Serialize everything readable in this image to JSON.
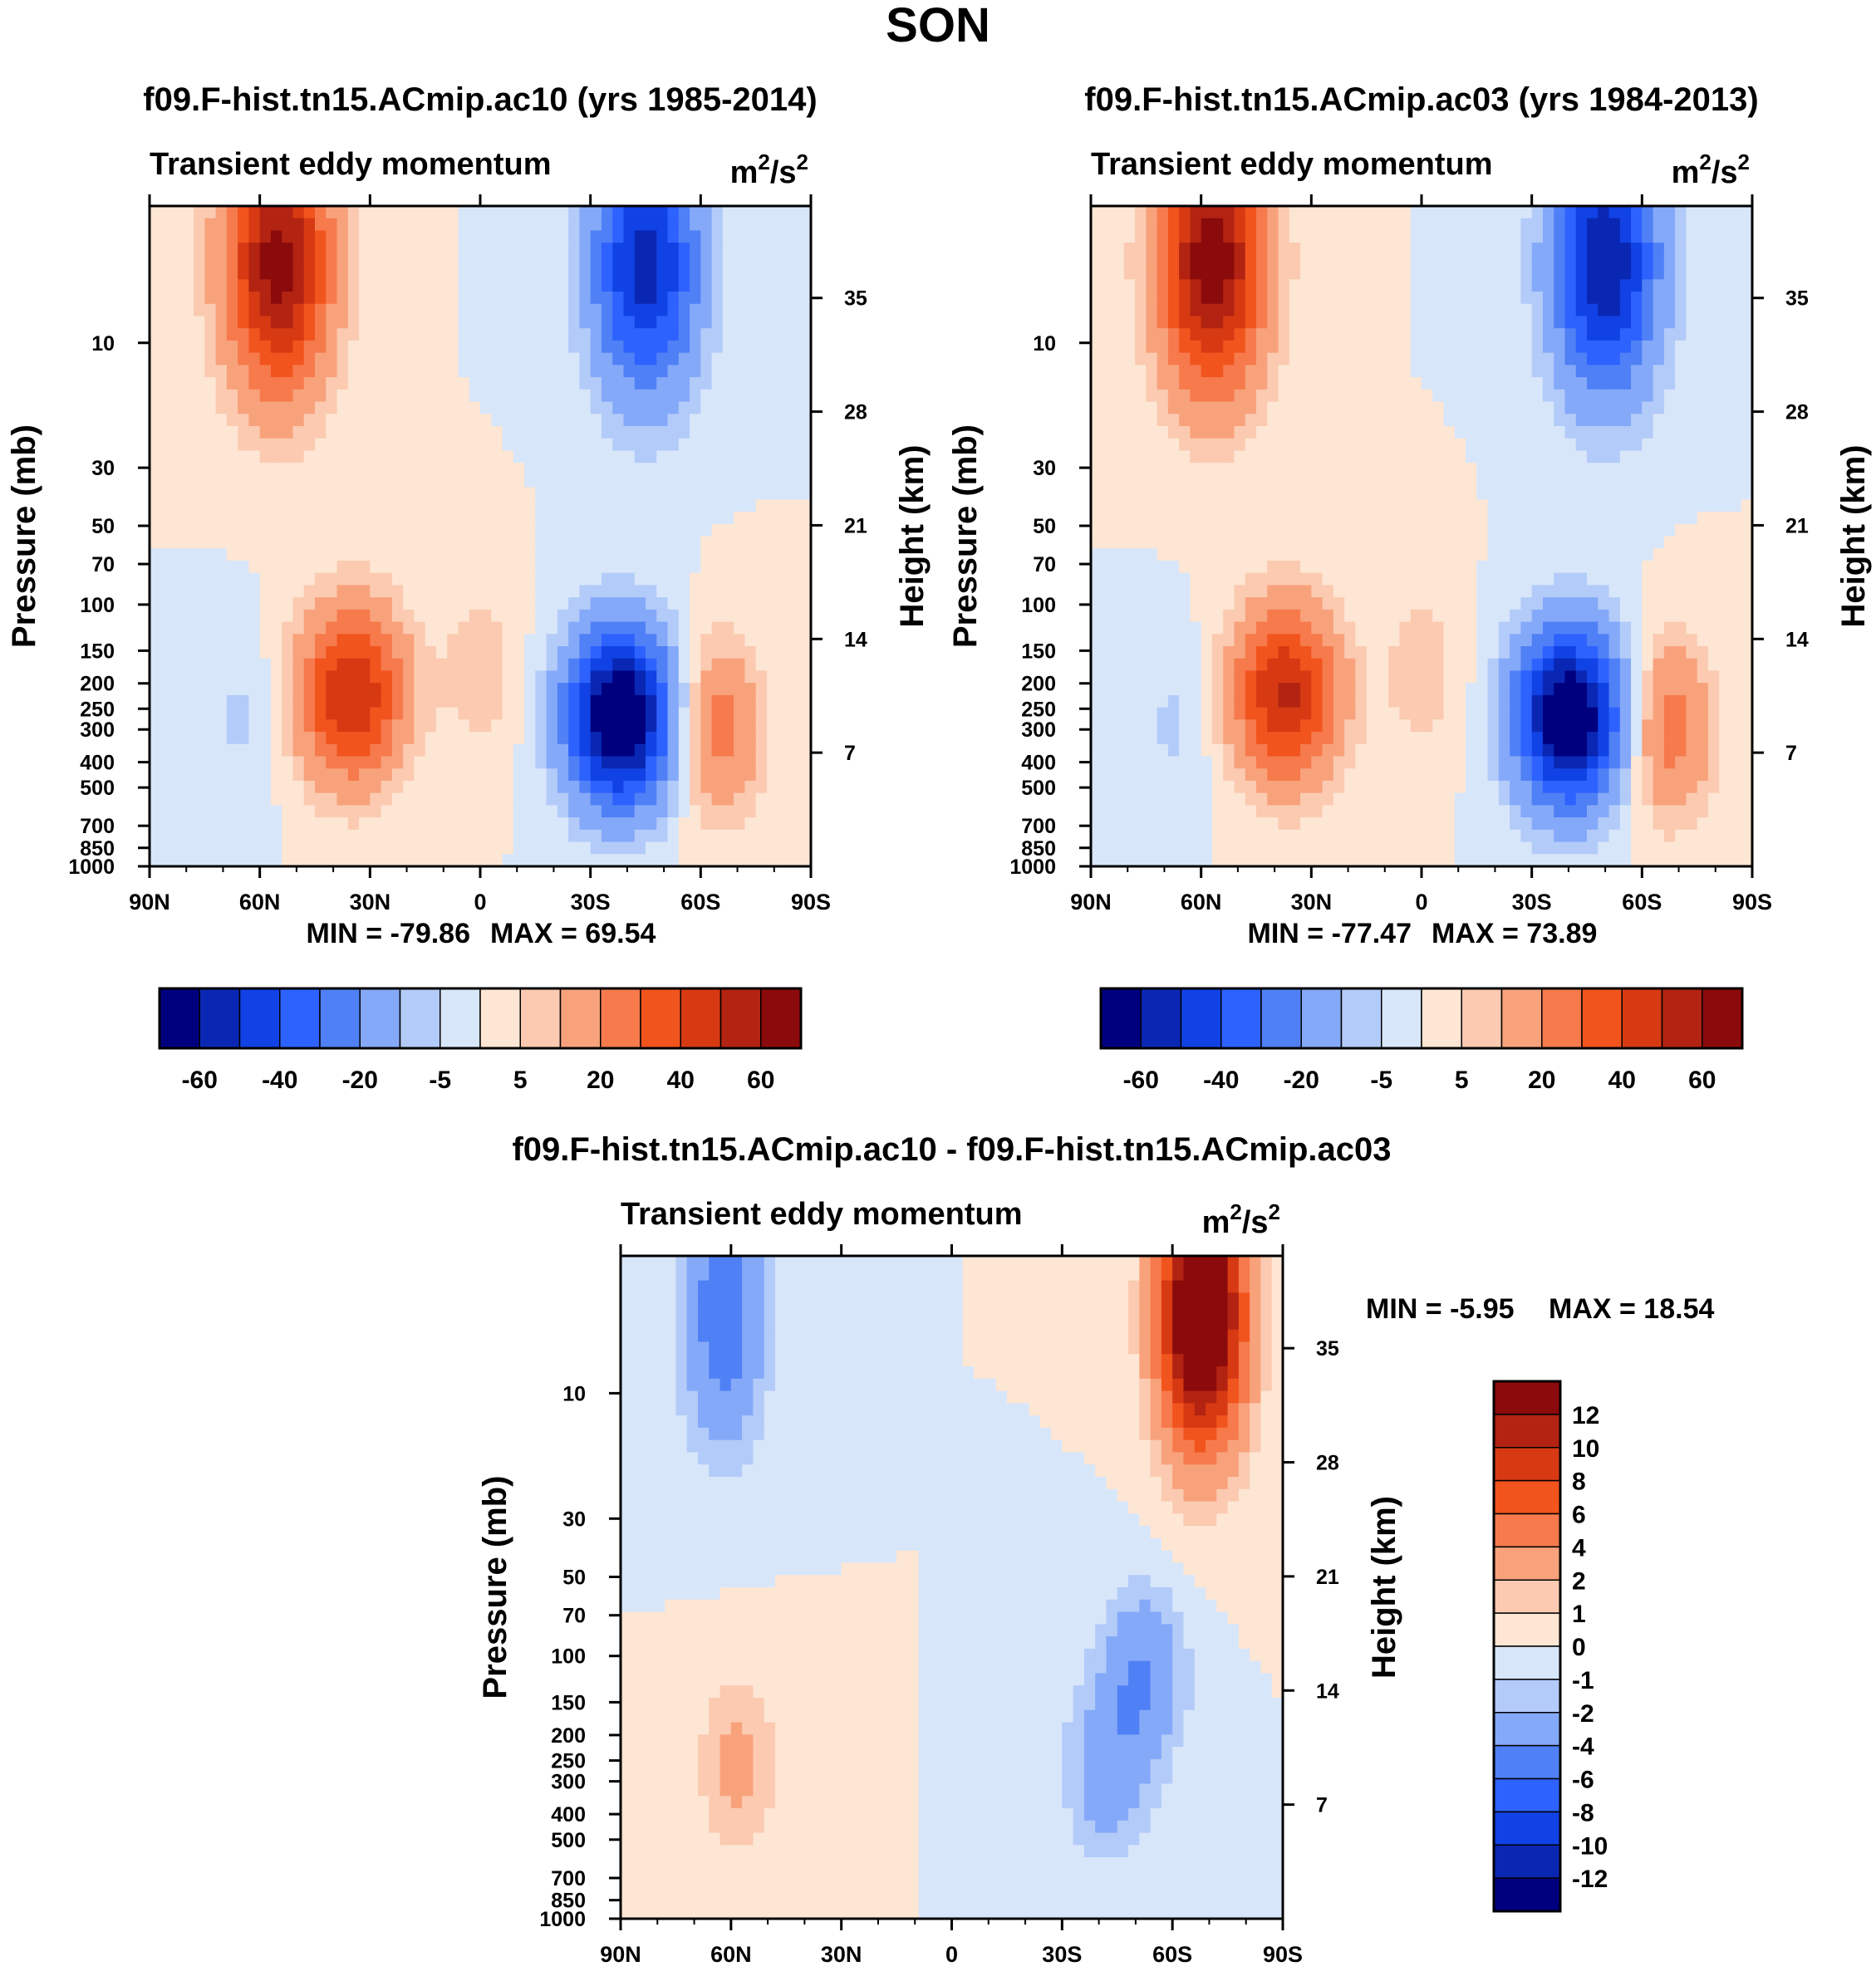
{
  "figure_title": "SON",
  "chart_data": [
    {
      "type": "heatmap",
      "title": "f09.F-hist.tn15.ACmip.ac10 (yrs 1985-2014)",
      "subtitle": "Transient eddy momentum",
      "units": "m",
      "units_sup1": "2",
      "units_mid": "/s",
      "units_sup2": "2",
      "xlabel": "",
      "ylabel": "Pressure (mb)",
      "y2label": "Height (km)",
      "xticks": [
        "90N",
        "60N",
        "30N",
        "0",
        "30S",
        "60S",
        "90S"
      ],
      "yticks": [
        "10",
        "30",
        "50",
        "70",
        "100",
        "150",
        "200",
        "250",
        "300",
        "400",
        "500",
        "700",
        "850",
        "1000"
      ],
      "y2ticks": [
        "35",
        "28",
        "21",
        "14",
        "7"
      ],
      "xlim": [
        90,
        -90
      ],
      "ylim": [
        1000,
        3
      ],
      "min_label": "MIN = -79.86",
      "max_label": "MAX =  69.54",
      "min": -79.86,
      "max": 69.54,
      "features": [
        {
          "lat": 55,
          "p": 5,
          "value": 65,
          "type": "positive-max"
        },
        {
          "lat": 35,
          "p": 220,
          "value": 50,
          "type": "positive-max"
        },
        {
          "lat": -38,
          "p": 270,
          "value": -78,
          "type": "negative-min"
        },
        {
          "lat": -45,
          "p": 5,
          "value": -55,
          "type": "negative-min"
        },
        {
          "lat": -65,
          "p": 300,
          "value": 25,
          "type": "positive-max"
        },
        {
          "lat": 0,
          "p": 180,
          "value": 8,
          "type": "positive-max"
        },
        {
          "lat": 65,
          "p": 280,
          "value": -6,
          "type": "negative-min"
        }
      ],
      "colorbar": {
        "orientation": "horizontal",
        "labels": [
          "-60",
          "-40",
          "-20",
          "-5",
          "5",
          "20",
          "40",
          "60"
        ],
        "levels": [
          -70,
          -60,
          -50,
          -40,
          -30,
          -20,
          -10,
          -5,
          0,
          5,
          10,
          20,
          30,
          40,
          50,
          60,
          70
        ]
      }
    },
    {
      "type": "heatmap",
      "title": "f09.F-hist.tn15.ACmip.ac03 (yrs 1984-2013)",
      "subtitle": "Transient eddy momentum",
      "units": "m",
      "units_sup1": "2",
      "units_mid": "/s",
      "units_sup2": "2",
      "xlabel": "",
      "ylabel": "Pressure (mb)",
      "y2label": "Height (km)",
      "xticks": [
        "90N",
        "60N",
        "30N",
        "0",
        "30S",
        "60S",
        "90S"
      ],
      "yticks": [
        "10",
        "30",
        "50",
        "70",
        "100",
        "150",
        "200",
        "250",
        "300",
        "400",
        "500",
        "700",
        "850",
        "1000"
      ],
      "y2ticks": [
        "35",
        "28",
        "21",
        "14",
        "7"
      ],
      "xlim": [
        90,
        -90
      ],
      "ylim": [
        1000,
        3
      ],
      "min_label": "MIN = -77.47",
      "max_label": "MAX =  73.89",
      "min": -77.47,
      "max": 73.89,
      "features": [
        {
          "lat": 57,
          "p": 5,
          "value": 68,
          "type": "positive-max"
        },
        {
          "lat": 37,
          "p": 220,
          "value": 52,
          "type": "positive-max"
        },
        {
          "lat": -40,
          "p": 270,
          "value": -76,
          "type": "negative-min"
        },
        {
          "lat": -50,
          "p": 5,
          "value": -60,
          "type": "negative-min"
        },
        {
          "lat": -68,
          "p": 300,
          "value": 25,
          "type": "positive-max"
        },
        {
          "lat": 0,
          "p": 180,
          "value": 8,
          "type": "positive-max"
        },
        {
          "lat": 67,
          "p": 280,
          "value": -6,
          "type": "negative-min"
        }
      ],
      "colorbar": {
        "orientation": "horizontal",
        "labels": [
          "-60",
          "-40",
          "-20",
          "-5",
          "5",
          "20",
          "40",
          "60"
        ],
        "levels": [
          -70,
          -60,
          -50,
          -40,
          -30,
          -20,
          -10,
          -5,
          0,
          5,
          10,
          20,
          30,
          40,
          50,
          60,
          70
        ]
      }
    },
    {
      "type": "heatmap",
      "title": "f09.F-hist.tn15.ACmip.ac10 - f09.F-hist.tn15.ACmip.ac03",
      "subtitle": "Transient eddy momentum",
      "units": "m",
      "units_sup1": "2",
      "units_mid": "/s",
      "units_sup2": "2",
      "xlabel": "",
      "ylabel": "Pressure (mb)",
      "y2label": "Height (km)",
      "xticks": [
        "90N",
        "60N",
        "30N",
        "0",
        "30S",
        "60S",
        "90S"
      ],
      "yticks": [
        "10",
        "30",
        "50",
        "70",
        "100",
        "150",
        "200",
        "250",
        "300",
        "400",
        "500",
        "700",
        "850",
        "1000"
      ],
      "y2ticks": [
        "35",
        "28",
        "21",
        "14",
        "7"
      ],
      "xlim": [
        90,
        -90
      ],
      "ylim": [
        1000,
        3
      ],
      "min_label": "MIN =  -5.95",
      "max_label": "MAX =  18.54",
      "min": -5.95,
      "max": 18.54,
      "features": [
        {
          "lat": -68,
          "p": 5,
          "value": 18.5,
          "type": "positive-max"
        },
        {
          "lat": 62,
          "p": 5,
          "value": -5.5,
          "type": "negative-min"
        },
        {
          "lat": -52,
          "p": 120,
          "value": -4,
          "type": "negative-min"
        },
        {
          "lat": -42,
          "p": 280,
          "value": -3,
          "type": "negative-min"
        },
        {
          "lat": 58,
          "p": 260,
          "value": 2.5,
          "type": "positive-max"
        }
      ],
      "colorbar": {
        "orientation": "vertical",
        "labels": [
          "12",
          "10",
          "8",
          "6",
          "4",
          "2",
          "1",
          "0",
          "-1",
          "-2",
          "-4",
          "-6",
          "-8",
          "-10",
          "-12"
        ],
        "levels": [
          -14,
          -12,
          -10,
          -8,
          -6,
          -4,
          -2,
          -1,
          0,
          1,
          2,
          4,
          6,
          8,
          10,
          12,
          14
        ]
      }
    }
  ],
  "palette": [
    "#00007f",
    "#0a27b4",
    "#1042e5",
    "#2e62ff",
    "#4f80f5",
    "#85a9f9",
    "#b3cbf9",
    "#d8e6fa",
    "#fde6d3",
    "#fbcab1",
    "#f8a27b",
    "#f67a4c",
    "#f2541e",
    "#d73a12",
    "#b32312",
    "#8b0a0b"
  ]
}
